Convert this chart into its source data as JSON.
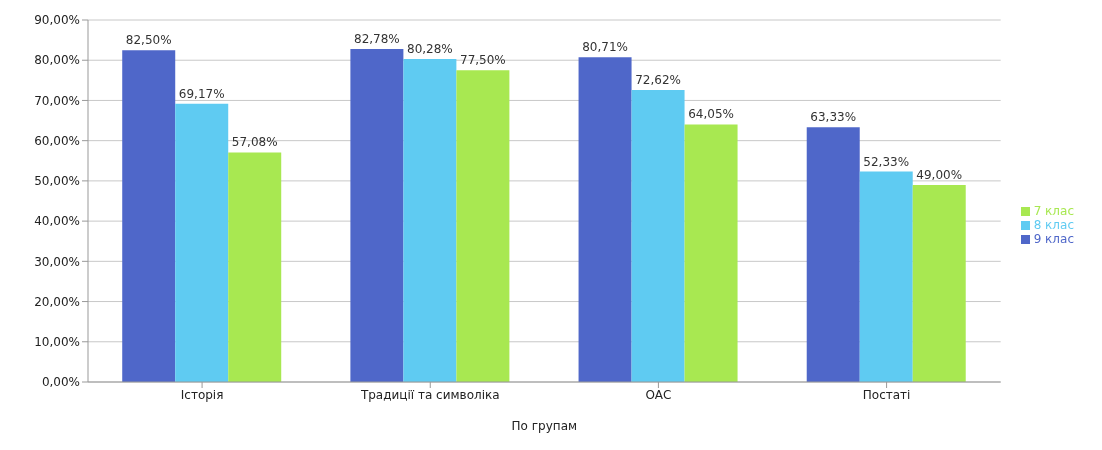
{
  "chart_data": {
    "type": "bar",
    "xlabel": "По групам",
    "categories": [
      "Історія",
      "Традиції та символіка",
      "ОАС",
      "Постаті"
    ],
    "series": [
      {
        "name": "9 клас",
        "color": "#4f67c9",
        "values": [
          82.5,
          82.78,
          80.71,
          63.33
        ],
        "value_labels": [
          "82,50%",
          "82,78%",
          "80,71%",
          "63,33%"
        ]
      },
      {
        "name": "8 клас",
        "color": "#5fcbf2",
        "values": [
          69.17,
          80.28,
          72.62,
          52.33
        ],
        "value_labels": [
          "69,17%",
          "80,28%",
          "72,62%",
          "52,33%"
        ]
      },
      {
        "name": "7 клас",
        "color": "#a8e851",
        "values": [
          57.08,
          77.5,
          64.05,
          49.0
        ],
        "value_labels": [
          "57,08%",
          "77,50%",
          "64,05%",
          "49,00%"
        ]
      }
    ],
    "ylim": [
      0,
      90
    ],
    "yticks": [
      {
        "value": 0,
        "label": "0,00%"
      },
      {
        "value": 10,
        "label": "10,00%"
      },
      {
        "value": 20,
        "label": "20,00%"
      },
      {
        "value": 30,
        "label": "30,00%"
      },
      {
        "value": 40,
        "label": "40,00%"
      },
      {
        "value": 50,
        "label": "50,00%"
      },
      {
        "value": 60,
        "label": "60,00%"
      },
      {
        "value": 70,
        "label": "70,00%"
      },
      {
        "value": 80,
        "label": "80,00%"
      },
      {
        "value": 90,
        "label": "90,00%"
      }
    ],
    "grid": "y",
    "legend": "right"
  }
}
